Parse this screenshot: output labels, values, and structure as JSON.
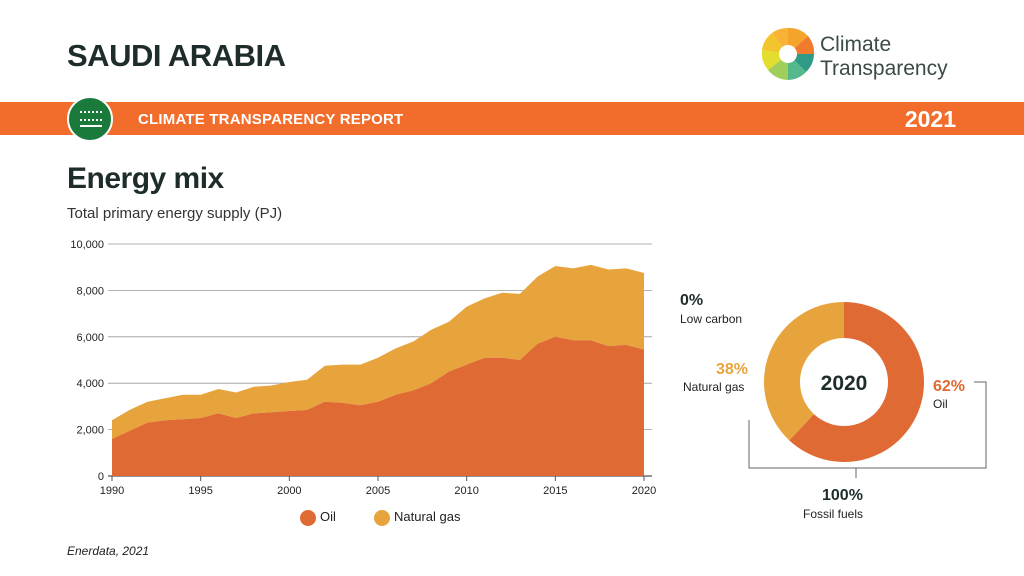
{
  "header": {
    "country": "SAUDI ARABIA",
    "logo_line1": "Climate",
    "logo_line2": "Transparency",
    "banner_title": "CLIMATE TRANSPARENCY REPORT",
    "banner_year": "2021"
  },
  "section": {
    "title": "Energy mix",
    "subtitle": "Total primary energy supply (PJ)"
  },
  "colors": {
    "oil": "#e06a33",
    "gas": "#e8a43c",
    "banner": "#f26d2b"
  },
  "legend": {
    "oil": "Oil",
    "gas": "Natural gas"
  },
  "source": "Enerdata, 2021",
  "chart_data": [
    {
      "type": "area",
      "stacked": true,
      "x": [
        1990,
        1991,
        1992,
        1993,
        1994,
        1995,
        1996,
        1997,
        1998,
        1999,
        2000,
        2001,
        2002,
        2003,
        2004,
        2005,
        2006,
        2007,
        2008,
        2009,
        2010,
        2011,
        2012,
        2013,
        2014,
        2015,
        2016,
        2017,
        2018,
        2019,
        2020
      ],
      "x_ticks": [
        1990,
        1995,
        2000,
        2005,
        2010,
        2015,
        2020
      ],
      "y_ticks": [
        0,
        2000,
        4000,
        6000,
        8000,
        10000
      ],
      "y_tick_labels": [
        "0",
        "2,000",
        "4,000",
        "6,000",
        "8,000",
        "10,000"
      ],
      "ylim": [
        0,
        10000
      ],
      "grid": true,
      "series": [
        {
          "name": "Oil",
          "values": [
            1600,
            1950,
            2300,
            2400,
            2450,
            2500,
            2700,
            2500,
            2700,
            2750,
            2800,
            2850,
            3200,
            3150,
            3050,
            3200,
            3500,
            3700,
            4000,
            4500,
            4800,
            5100,
            5100,
            5000,
            5700,
            6000,
            5850,
            5850,
            5600,
            5650,
            5450
          ]
        },
        {
          "name": "Natural gas",
          "values": [
            800,
            900,
            900,
            950,
            1050,
            1000,
            1050,
            1100,
            1150,
            1150,
            1250,
            1300,
            1550,
            1650,
            1750,
            1900,
            2000,
            2100,
            2300,
            2150,
            2500,
            2550,
            2800,
            2850,
            2900,
            3050,
            3100,
            3250,
            3300,
            3300,
            3300
          ]
        }
      ]
    },
    {
      "type": "pie",
      "donut": true,
      "center_label": "2020",
      "slices": [
        {
          "name": "Oil",
          "value": 62,
          "label": "62%"
        },
        {
          "name": "Natural gas",
          "value": 38,
          "label": "38%"
        }
      ],
      "annotations": [
        {
          "pct": "0%",
          "text": "Low carbon"
        },
        {
          "pct": "100%",
          "text": "Fossil fuels"
        }
      ]
    }
  ]
}
